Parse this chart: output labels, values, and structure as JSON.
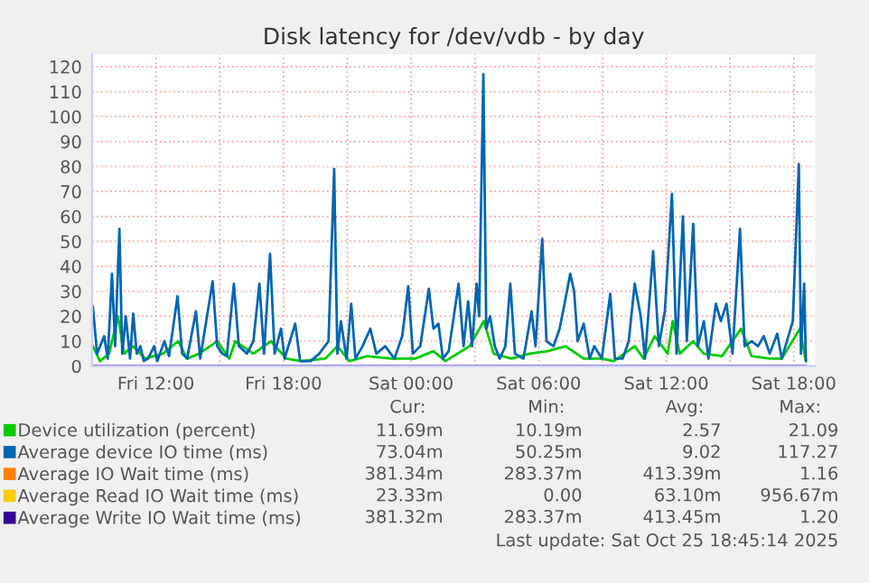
{
  "chart_data": {
    "type": "line",
    "title": "Disk latency for /dev/vdb - by day",
    "xlim": [
      "2025-10-24T09:00",
      "2025-10-25T19:00"
    ],
    "ylim": [
      0,
      125
    ],
    "xticks": [
      {
        "value": "2025-10-24T09:00",
        "label": null
      },
      {
        "value": "2025-10-24T12:00",
        "label": "Fri 12:00"
      },
      {
        "value": "2025-10-24T15:00",
        "label": null
      },
      {
        "value": "2025-10-24T18:00",
        "label": "Fri 18:00"
      },
      {
        "value": "2025-10-24T21:00",
        "label": null
      },
      {
        "value": "2025-10-25T00:00",
        "label": "Sat 00:00"
      },
      {
        "value": "2025-10-25T03:00",
        "label": null
      },
      {
        "value": "2025-10-25T06:00",
        "label": "Sat 06:00"
      },
      {
        "value": "2025-10-25T09:00",
        "label": null
      },
      {
        "value": "2025-10-25T12:00",
        "label": "Sat 12:00"
      },
      {
        "value": "2025-10-25T15:00",
        "label": null
      },
      {
        "value": "2025-10-25T18:00",
        "label": "Sat 18:00"
      }
    ],
    "yticks": [
      0,
      10,
      20,
      30,
      40,
      50,
      60,
      70,
      80,
      90,
      100,
      110,
      120
    ],
    "grid": true,
    "legend": "bottom",
    "line_style": "solid",
    "marker": "none",
    "series": [
      {
        "name": "Device utilization (percent)",
        "color": "#00cc00",
        "x": [
          "2025-10-24T09:02",
          "2025-10-24T09:22",
          "2025-10-24T09:48",
          "2025-10-24T10:13",
          "2025-10-24T10:30",
          "2025-10-24T10:56",
          "2025-10-24T11:29",
          "2025-10-24T12:20",
          "2025-10-24T13:03",
          "2025-10-24T13:28",
          "2025-10-24T14:02",
          "2025-10-24T14:53",
          "2025-10-24T15:27",
          "2025-10-24T15:44",
          "2025-10-24T16:35",
          "2025-10-24T17:25",
          "2025-10-24T18:08",
          "2025-10-24T18:50",
          "2025-10-24T19:58",
          "2025-10-24T20:32",
          "2025-10-24T21:06",
          "2025-10-24T21:56",
          "2025-10-24T23:04",
          "2025-10-25T00:12",
          "2025-10-25T01:03",
          "2025-10-25T01:37",
          "2025-10-25T02:45",
          "2025-10-25T03:25",
          "2025-10-25T03:53",
          "2025-10-25T04:43",
          "2025-10-25T05:34",
          "2025-10-25T06:25",
          "2025-10-25T07:16",
          "2025-10-25T08:07",
          "2025-10-25T08:58",
          "2025-10-25T09:32",
          "2025-10-25T10:31",
          "2025-10-25T10:56",
          "2025-10-25T11:27",
          "2025-10-25T12:04",
          "2025-10-25T12:18",
          "2025-10-25T12:38",
          "2025-10-25T13:16",
          "2025-10-25T13:46",
          "2025-10-25T14:37",
          "2025-10-25T15:31",
          "2025-10-25T16:01",
          "2025-10-25T16:52",
          "2025-10-25T17:26",
          "2025-10-25T18:17",
          "2025-10-25T18:34"
        ],
        "values": [
          8,
          2,
          5,
          20,
          5,
          8,
          3,
          5,
          10,
          3,
          5,
          10,
          3,
          10,
          5,
          10,
          3,
          2,
          3,
          8,
          2,
          4,
          3,
          3,
          6,
          2,
          8,
          18,
          5,
          3,
          5,
          6,
          8,
          3,
          3,
          2,
          8,
          3,
          12,
          5,
          18,
          5,
          10,
          5,
          4,
          15,
          4,
          3,
          3,
          15,
          2
        ]
      },
      {
        "name": "Average device IO time (ms)",
        "color": "#0066b3",
        "x": [
          "2025-10-24T09:02",
          "2025-10-24T09:14",
          "2025-10-24T09:34",
          "2025-10-24T09:44",
          "2025-10-24T09:56",
          "2025-10-24T10:05",
          "2025-10-24T10:17",
          "2025-10-24T10:25",
          "2025-10-24T10:35",
          "2025-10-24T10:47",
          "2025-10-24T10:56",
          "2025-10-24T11:06",
          "2025-10-24T11:16",
          "2025-10-24T11:26",
          "2025-10-24T11:38",
          "2025-10-24T11:55",
          "2025-10-24T12:04",
          "2025-10-24T12:24",
          "2025-10-24T12:37",
          "2025-10-24T13:01",
          "2025-10-24T13:14",
          "2025-10-24T13:28",
          "2025-10-24T13:53",
          "2025-10-24T14:05",
          "2025-10-24T14:40",
          "2025-10-24T14:53",
          "2025-10-24T15:07",
          "2025-10-24T15:20",
          "2025-10-24T15:40",
          "2025-10-24T15:54",
          "2025-10-24T16:17",
          "2025-10-24T16:35",
          "2025-10-24T16:52",
          "2025-10-24T17:05",
          "2025-10-24T17:22",
          "2025-10-24T17:35",
          "2025-10-24T17:53",
          "2025-10-24T18:03",
          "2025-10-24T18:33",
          "2025-10-24T18:47",
          "2025-10-24T19:16",
          "2025-10-24T19:41",
          "2025-10-24T20:07",
          "2025-10-24T20:23",
          "2025-10-24T20:32",
          "2025-10-24T20:42",
          "2025-10-24T20:58",
          "2025-10-24T21:11",
          "2025-10-24T21:23",
          "2025-10-24T21:43",
          "2025-10-24T22:05",
          "2025-10-24T22:22",
          "2025-10-24T22:47",
          "2025-10-24T23:13",
          "2025-10-24T23:35",
          "2025-10-24T23:52",
          "2025-10-25T00:05",
          "2025-10-25T00:26",
          "2025-10-25T00:50",
          "2025-10-25T01:03",
          "2025-10-25T01:17",
          "2025-10-25T01:30",
          "2025-10-25T01:46",
          "2025-10-25T02:14",
          "2025-10-25T02:28",
          "2025-10-25T02:41",
          "2025-10-25T02:52",
          "2025-10-25T03:05",
          "2025-10-25T03:12",
          "2025-10-25T03:24",
          "2025-10-25T03:32",
          "2025-10-25T03:43",
          "2025-10-25T03:56",
          "2025-10-25T04:10",
          "2025-10-25T04:26",
          "2025-10-25T04:40",
          "2025-10-25T04:53",
          "2025-10-25T05:17",
          "2025-10-25T05:40",
          "2025-10-25T05:51",
          "2025-10-25T06:10",
          "2025-10-25T06:22",
          "2025-10-25T06:42",
          "2025-10-25T06:59",
          "2025-10-25T07:13",
          "2025-10-25T07:29",
          "2025-10-25T07:40",
          "2025-10-25T07:50",
          "2025-10-25T08:07",
          "2025-10-25T08:24",
          "2025-10-25T08:37",
          "2025-10-25T08:58",
          "2025-10-25T09:22",
          "2025-10-25T09:35",
          "2025-10-25T09:57",
          "2025-10-25T10:14",
          "2025-10-25T10:31",
          "2025-10-25T10:48",
          "2025-10-25T11:00",
          "2025-10-25T11:23",
          "2025-10-25T11:39",
          "2025-10-25T11:56",
          "2025-10-25T12:16",
          "2025-10-25T12:29",
          "2025-10-25T12:47",
          "2025-10-25T12:58",
          "2025-10-25T13:16",
          "2025-10-25T13:29",
          "2025-10-25T13:46",
          "2025-10-25T13:59",
          "2025-10-25T14:20",
          "2025-10-25T14:34",
          "2025-10-25T14:50",
          "2025-10-25T15:07",
          "2025-10-25T15:28",
          "2025-10-25T15:41",
          "2025-10-25T16:01",
          "2025-10-25T16:19",
          "2025-10-25T16:35",
          "2025-10-25T16:52",
          "2025-10-25T17:13",
          "2025-10-25T17:26",
          "2025-10-25T17:57",
          "2025-10-25T18:14",
          "2025-10-25T18:20",
          "2025-10-25T18:29",
          "2025-10-25T18:34"
        ],
        "values": [
          24,
          5,
          12,
          3,
          37,
          8,
          55,
          5,
          20,
          3,
          21,
          5,
          8,
          2,
          3,
          8,
          2,
          10,
          4,
          28,
          5,
          3,
          22,
          3,
          34,
          8,
          5,
          4,
          33,
          8,
          5,
          10,
          33,
          5,
          45,
          5,
          15,
          3,
          17,
          2,
          2,
          5,
          10,
          79,
          5,
          18,
          3,
          25,
          3,
          8,
          15,
          5,
          8,
          3,
          12,
          32,
          5,
          8,
          31,
          15,
          17,
          3,
          6,
          33,
          8,
          26,
          8,
          33,
          20,
          117,
          15,
          20,
          8,
          3,
          8,
          33,
          5,
          3,
          22,
          8,
          51,
          10,
          8,
          15,
          25,
          37,
          30,
          10,
          17,
          3,
          8,
          3,
          29,
          3,
          3,
          10,
          33,
          20,
          3,
          46,
          8,
          22,
          69,
          5,
          60,
          10,
          57,
          8,
          18,
          3,
          25,
          18,
          25,
          5,
          55,
          8,
          10,
          8,
          12,
          5,
          13,
          3,
          18,
          81,
          5,
          33,
          2
        ]
      },
      {
        "name": "Average IO Wait time (ms)",
        "color": "#ff8000"
      },
      {
        "name": "Average Read IO Wait time (ms)",
        "color": "#ffcc00"
      },
      {
        "name": "Average Write IO Wait time (ms)",
        "color": "#330099",
        "x": [
          "2025-10-24T09:02",
          "2025-10-25T18:34"
        ],
        "values": [
          0,
          0
        ]
      }
    ],
    "annotations": [
      "Cur:",
      "Min:",
      "Avg:",
      "Max:",
      "11.69m",
      "10.19m",
      "2.57",
      "21.09",
      "73.04m",
      "50.25m",
      "9.02",
      "117.27",
      "381.34m",
      "283.37m",
      "413.39m",
      "1.16",
      "23.33m",
      "0.00",
      "63.10m",
      "956.67m",
      "381.32m",
      "283.37m",
      "413.45m",
      "1.20",
      "Last update: Sat Oct 25 18:45:14 2025"
    ]
  }
}
